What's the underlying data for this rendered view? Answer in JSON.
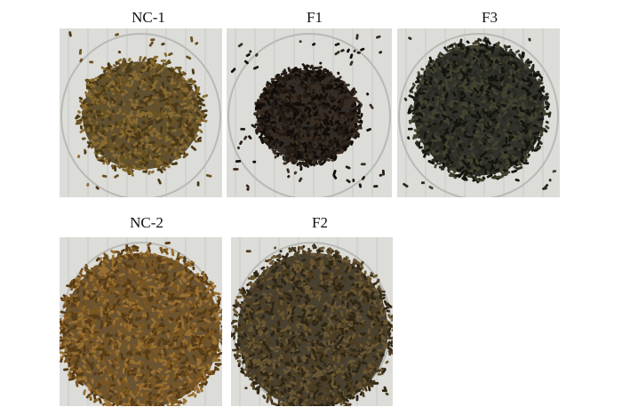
{
  "panels": [
    {
      "id": "nc1",
      "label": "NC-1",
      "pellet_color": "#6a5222",
      "pellet_dark": "#4a3816",
      "pellet_light": "#8a6c32",
      "density": "medium"
    },
    {
      "id": "f1",
      "label": "F1",
      "pellet_color": "#231b14",
      "pellet_dark": "#120d09",
      "pellet_light": "#3a2e22",
      "density": "dense"
    },
    {
      "id": "f3",
      "label": "F3",
      "pellet_color": "#2a2a22",
      "pellet_dark": "#15150f",
      "pellet_light": "#45432f",
      "density": "dense"
    },
    {
      "id": "nc2",
      "label": "NC-2",
      "pellet_color": "#7a5621",
      "pellet_dark": "#573c15",
      "pellet_light": "#9a7031",
      "density": "full"
    },
    {
      "id": "f2",
      "label": "F2",
      "pellet_color": "#4c3d22",
      "pellet_dark": "#2f2614",
      "pellet_light": "#6a5732",
      "density": "full"
    }
  ],
  "colors": {
    "dish_bg": "#dcdcd8",
    "dish_edge": "#b9b9b5",
    "grid_line": "#c8c8c4"
  }
}
